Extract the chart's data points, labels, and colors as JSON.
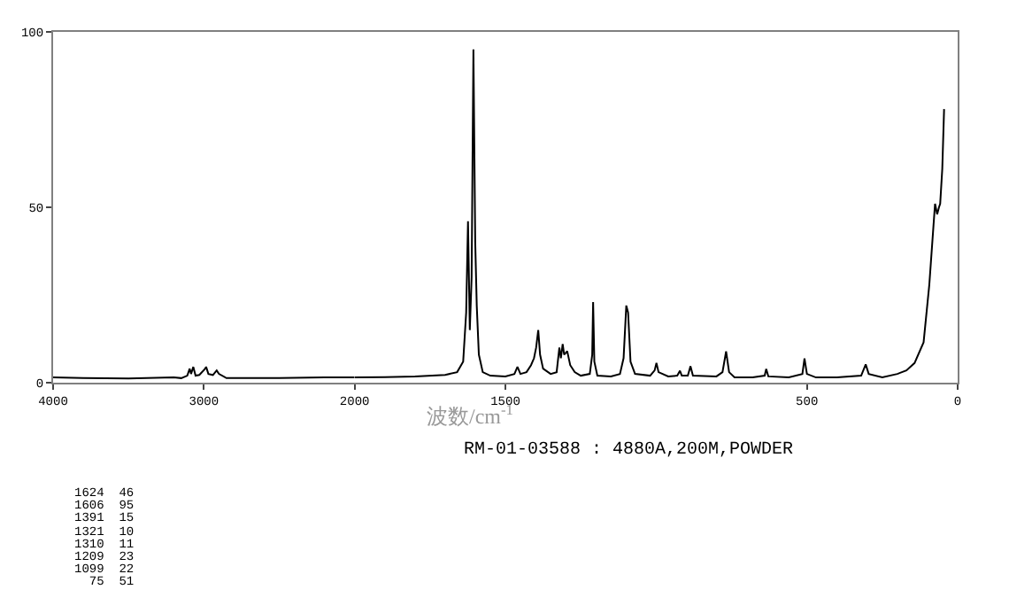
{
  "chart_data": [
    {
      "type": "line",
      "x": [
        4000,
        3800,
        3500,
        3200,
        3150,
        3110,
        3094,
        3085,
        3070,
        3055,
        3030,
        2995,
        2985,
        2970,
        2940,
        2915,
        2900,
        2850,
        2500,
        2200,
        2000
      ],
      "series": [
        {
          "color": "#000000",
          "values": [
            1.5,
            1.3,
            1.2,
            1.5,
            1.3,
            2,
            4,
            2.5,
            4.5,
            2,
            2.2,
            3.8,
            4.5,
            2.5,
            2.2,
            3.5,
            2.5,
            1.3,
            1.3,
            1.5,
            1.5
          ]
        }
      ],
      "xlim": [
        4000,
        2000
      ],
      "xticks": [
        4000,
        3000,
        2000
      ],
      "ylim": [
        0,
        100
      ],
      "yticks": [
        0,
        50,
        100
      ]
    },
    {
      "type": "line",
      "x": [
        2000,
        1900,
        1800,
        1700,
        1660,
        1640,
        1630,
        1624,
        1618,
        1612,
        1606,
        1600,
        1595,
        1588,
        1575,
        1550,
        1500,
        1470,
        1460,
        1450,
        1430,
        1415,
        1405,
        1398,
        1391,
        1385,
        1375,
        1350,
        1330,
        1321,
        1316,
        1310,
        1305,
        1295,
        1285,
        1270,
        1250,
        1220,
        1212,
        1209,
        1205,
        1195,
        1150,
        1120,
        1108,
        1099,
        1093,
        1085,
        1070,
        1020,
        1005,
        999,
        992,
        960,
        930,
        921,
        915,
        895,
        886,
        878,
        800,
        780,
        768,
        758,
        740,
        680,
        640,
        635,
        628,
        560,
        515,
        508,
        500,
        470,
        400,
        320,
        305,
        295,
        250,
        200,
        170,
        143,
        113,
        94,
        80,
        75,
        68,
        62,
        58,
        51,
        45
      ],
      "series": [
        {
          "color": "#000000",
          "values": [
            1.5,
            1.6,
            1.8,
            2.2,
            3,
            6,
            20,
            46,
            15,
            30,
            95,
            40,
            22,
            8,
            3,
            2,
            1.8,
            2.5,
            4.5,
            2.5,
            3,
            5,
            7,
            10,
            15,
            8,
            4,
            2.5,
            3,
            10,
            7,
            11,
            8,
            9,
            5,
            3,
            2,
            2.5,
            8,
            23,
            6,
            2,
            1.8,
            2.5,
            7,
            22,
            20,
            6,
            2.5,
            2,
            3.5,
            5.6,
            3,
            1.8,
            2,
            3.4,
            2,
            2,
            4.7,
            2,
            1.8,
            3,
            8.9,
            3,
            1.5,
            1.5,
            2,
            3.9,
            1.8,
            1.5,
            2.5,
            6.9,
            2.5,
            1.5,
            1.5,
            2,
            5.2,
            2.5,
            1.5,
            2.5,
            3.5,
            5.6,
            11.5,
            28,
            45,
            51,
            48,
            50,
            51,
            61,
            78
          ]
        }
      ],
      "xlim": [
        2000,
        0
      ],
      "xticks": [
        1500,
        500,
        0
      ],
      "ylim": [
        0,
        100
      ],
      "yticks": [
        0,
        50,
        100
      ],
      "tick_labels": "x",
      "xlabel": "波数/cm$^{-1}$",
      "annotations": [
        "RM-01-03588 : 4880A,200M,POWDER",
        "1624  46",
        "1606  95",
        "1391  15",
        "1321  10",
        "1310  11",
        "1209  23",
        "1099  22",
        "  75  51"
      ]
    }
  ]
}
